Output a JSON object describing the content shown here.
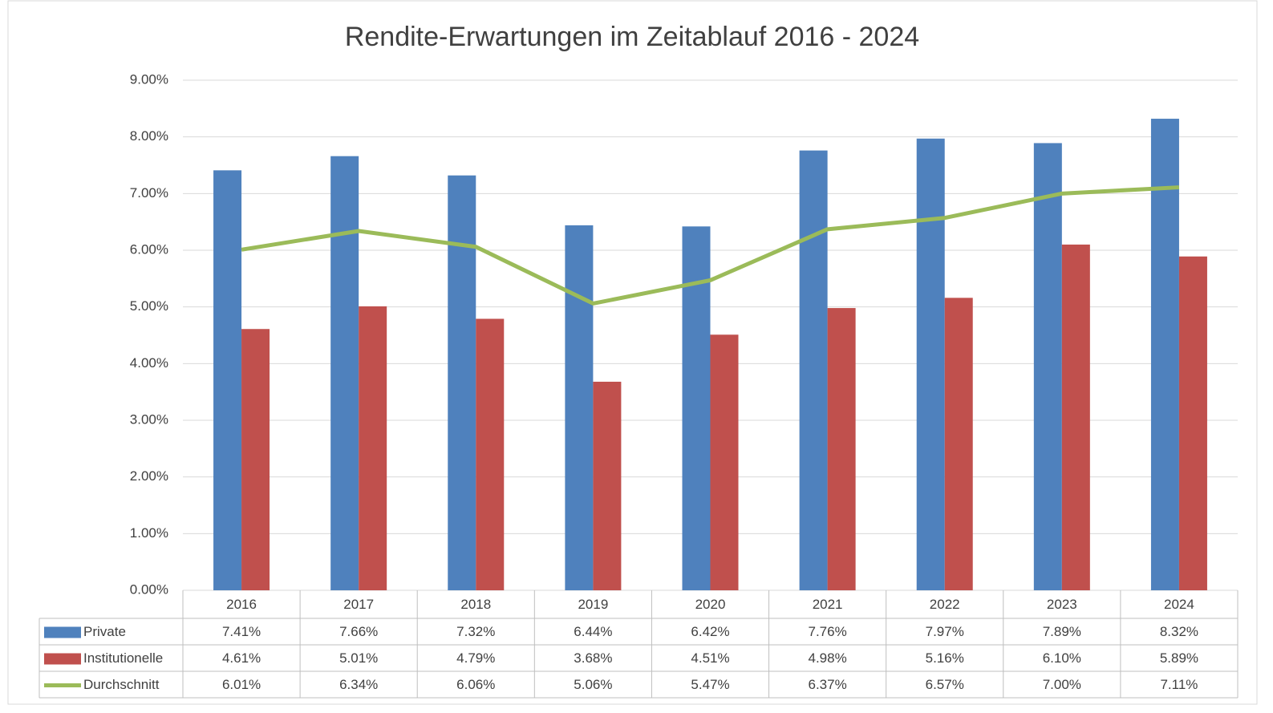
{
  "chart_data": {
    "type": "bar",
    "title": "Rendite-Erwartungen im Zeitablauf 2016 - 2024",
    "categories": [
      "2016",
      "2017",
      "2018",
      "2019",
      "2020",
      "2021",
      "2022",
      "2023",
      "2024"
    ],
    "series": [
      {
        "name": "Private",
        "type": "bar",
        "color": "#4f81bd",
        "values": [
          7.41,
          7.66,
          7.32,
          6.44,
          6.42,
          7.76,
          7.97,
          7.89,
          8.32
        ],
        "value_labels": [
          "7.41%",
          "7.66%",
          "7.32%",
          "6.44%",
          "6.42%",
          "7.76%",
          "7.97%",
          "7.89%",
          "8.32%"
        ]
      },
      {
        "name": "Institutionelle",
        "type": "bar",
        "color": "#c0504d",
        "values": [
          4.61,
          5.01,
          4.79,
          3.68,
          4.51,
          4.98,
          5.16,
          6.1,
          5.89
        ],
        "value_labels": [
          "4.61%",
          "5.01%",
          "4.79%",
          "3.68%",
          "4.51%",
          "4.98%",
          "5.16%",
          "6.10%",
          "5.89%"
        ]
      },
      {
        "name": "Durchschnitt",
        "type": "line",
        "color": "#9bbb59",
        "values": [
          6.01,
          6.34,
          6.06,
          5.06,
          5.47,
          6.37,
          6.57,
          7.0,
          7.11
        ],
        "value_labels": [
          "6.01%",
          "6.34%",
          "6.06%",
          "5.06%",
          "5.47%",
          "6.37%",
          "6.57%",
          "7.00%",
          "7.11%"
        ]
      }
    ],
    "ylim": [
      0,
      9
    ],
    "yticks": [
      {
        "value": 0,
        "label": "0.00%"
      },
      {
        "value": 1,
        "label": "1.00%"
      },
      {
        "value": 2,
        "label": "2.00%"
      },
      {
        "value": 3,
        "label": "3.00%"
      },
      {
        "value": 4,
        "label": "4.00%"
      },
      {
        "value": 5,
        "label": "5.00%"
      },
      {
        "value": 6,
        "label": "6.00%"
      },
      {
        "value": 7,
        "label": "7.00%"
      },
      {
        "value": 8,
        "label": "8.00%"
      },
      {
        "value": 9,
        "label": "9.00%"
      }
    ],
    "grid": true
  }
}
